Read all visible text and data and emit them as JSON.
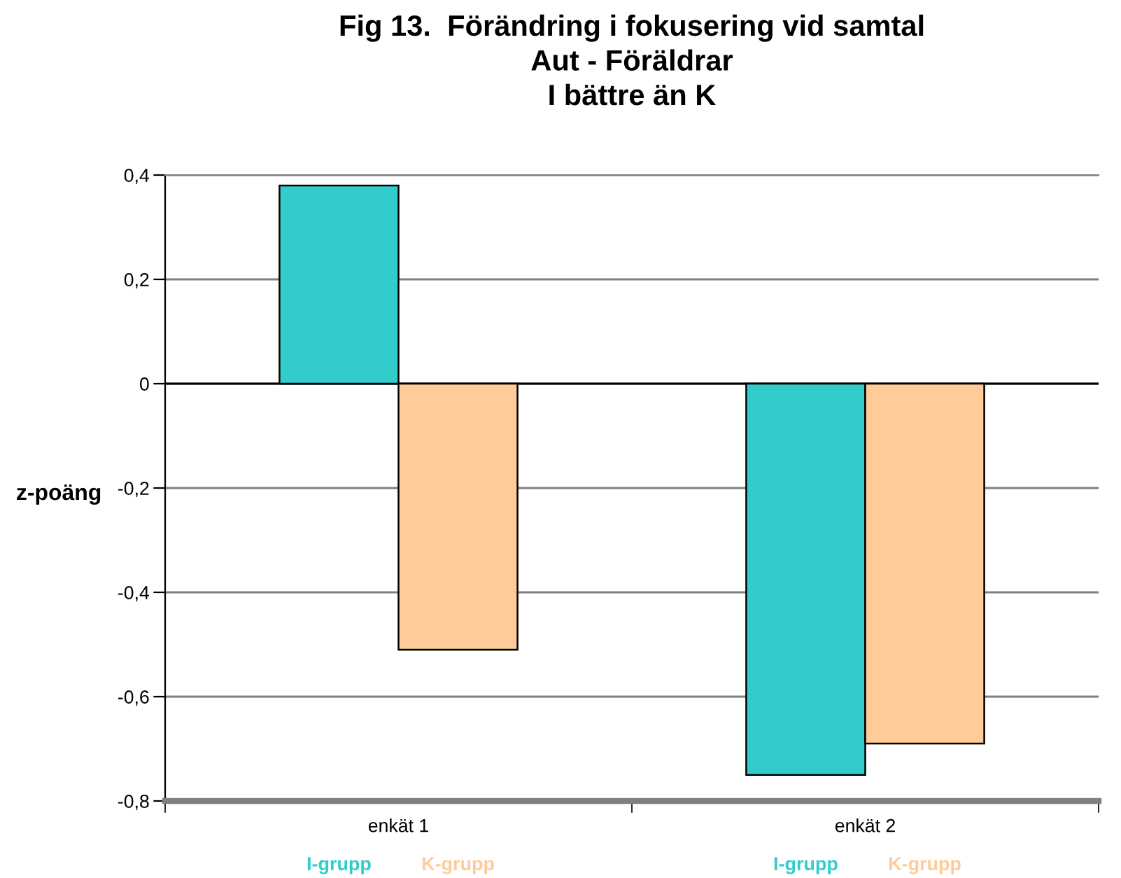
{
  "chart_data": {
    "type": "bar",
    "title": "Fig 13.  Förändring i fokusering vid samtal\nAut - Föräldrar\nI bättre än K",
    "ylabel": "z-poäng",
    "categories": [
      "enkät 1",
      "enkät 2"
    ],
    "series": [
      {
        "name": "I-grupp",
        "color": "#33cccc",
        "values": [
          0.38,
          -0.75
        ]
      },
      {
        "name": "K-grupp",
        "color": "#ffcc99",
        "values": [
          -0.51,
          -0.69
        ]
      }
    ],
    "ylim": [
      -0.8,
      0.4
    ],
    "yticks": [
      {
        "value": 0.4,
        "label": "0,4"
      },
      {
        "value": 0.2,
        "label": "0,2"
      },
      0,
      {
        "value": -0.2,
        "label": "-0,2"
      },
      {
        "value": -0.4,
        "label": "-0,4"
      },
      {
        "value": -0.6,
        "label": "-0,6"
      },
      {
        "value": -0.8,
        "label": "-0,8"
      }
    ],
    "grid": "y",
    "ref_lines": [
      {
        "axis": "y",
        "value": 0,
        "color": "#000000"
      }
    ]
  }
}
